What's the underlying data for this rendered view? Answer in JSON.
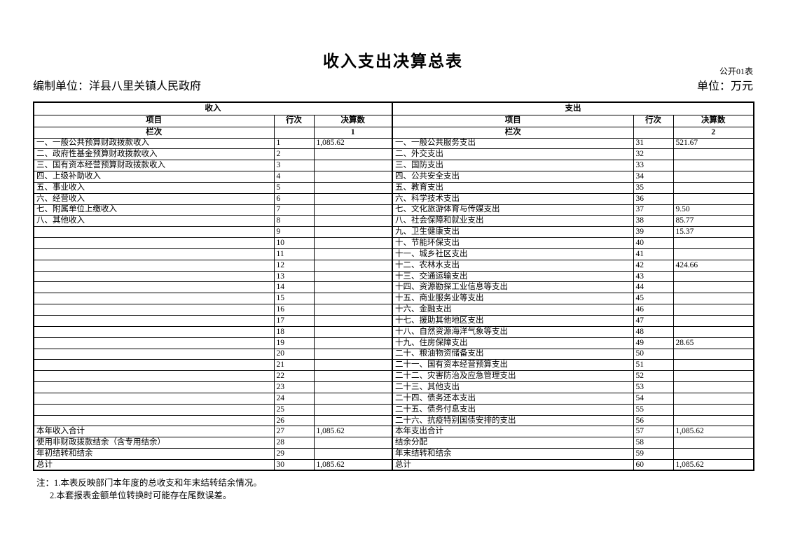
{
  "page": {
    "title": "收入支出决算总表",
    "form_code": "公开01表",
    "prepared_by": "编制单位：洋县八里关镇人民政府",
    "unit": "单位：万元"
  },
  "table": {
    "income_header": "收入",
    "expense_header": "支出",
    "col_item": "项目",
    "col_line": "行次",
    "col_amount": "决算数",
    "col_index_label": "栏次",
    "income_col_index": "1",
    "expense_col_index": "2",
    "income_rows": [
      {
        "item": "一、一般公共预算财政拨款收入",
        "line": "1",
        "amount": "1,085.62"
      },
      {
        "item": "二、政府性基金预算财政拨款收入",
        "line": "2",
        "amount": ""
      },
      {
        "item": "三、国有资本经营预算财政拨款收入",
        "line": "3",
        "amount": ""
      },
      {
        "item": "四、上级补助收入",
        "line": "4",
        "amount": ""
      },
      {
        "item": "五、事业收入",
        "line": "5",
        "amount": ""
      },
      {
        "item": "六、经营收入",
        "line": "6",
        "amount": ""
      },
      {
        "item": "七、附属单位上缴收入",
        "line": "7",
        "amount": ""
      },
      {
        "item": "八、其他收入",
        "line": "8",
        "amount": ""
      },
      {
        "item": "",
        "line": "9",
        "amount": ""
      },
      {
        "item": "",
        "line": "10",
        "amount": ""
      },
      {
        "item": "",
        "line": "11",
        "amount": ""
      },
      {
        "item": "",
        "line": "12",
        "amount": ""
      },
      {
        "item": "",
        "line": "13",
        "amount": ""
      },
      {
        "item": "",
        "line": "14",
        "amount": ""
      },
      {
        "item": "",
        "line": "15",
        "amount": ""
      },
      {
        "item": "",
        "line": "16",
        "amount": ""
      },
      {
        "item": "",
        "line": "17",
        "amount": ""
      },
      {
        "item": "",
        "line": "18",
        "amount": ""
      },
      {
        "item": "",
        "line": "19",
        "amount": ""
      },
      {
        "item": "",
        "line": "20",
        "amount": ""
      },
      {
        "item": "",
        "line": "21",
        "amount": ""
      },
      {
        "item": "",
        "line": "22",
        "amount": ""
      },
      {
        "item": "",
        "line": "23",
        "amount": ""
      },
      {
        "item": "",
        "line": "24",
        "amount": ""
      },
      {
        "item": "",
        "line": "25",
        "amount": ""
      },
      {
        "item": "",
        "line": "26",
        "amount": ""
      },
      {
        "item": "本年收入合计",
        "line": "27",
        "amount": "1,085.62"
      },
      {
        "item": "使用非财政拨款结余（含专用结余）",
        "line": "28",
        "amount": ""
      },
      {
        "item": "年初结转和结余",
        "line": "29",
        "amount": ""
      },
      {
        "item": "总计",
        "line": "30",
        "amount": "1,085.62"
      }
    ],
    "expense_rows": [
      {
        "item": "一、一般公共服务支出",
        "line": "31",
        "amount": "521.67"
      },
      {
        "item": "二、外交支出",
        "line": "32",
        "amount": ""
      },
      {
        "item": "三、国防支出",
        "line": "33",
        "amount": ""
      },
      {
        "item": "四、公共安全支出",
        "line": "34",
        "amount": ""
      },
      {
        "item": "五、教育支出",
        "line": "35",
        "amount": ""
      },
      {
        "item": "六、科学技术支出",
        "line": "36",
        "amount": ""
      },
      {
        "item": "七、文化旅游体育与传媒支出",
        "line": "37",
        "amount": "9.50"
      },
      {
        "item": "八、社会保障和就业支出",
        "line": "38",
        "amount": "85.77"
      },
      {
        "item": "九、卫生健康支出",
        "line": "39",
        "amount": "15.37"
      },
      {
        "item": "十、节能环保支出",
        "line": "40",
        "amount": ""
      },
      {
        "item": "十一、城乡社区支出",
        "line": "41",
        "amount": ""
      },
      {
        "item": "十二、农林水支出",
        "line": "42",
        "amount": "424.66"
      },
      {
        "item": "十三、交通运输支出",
        "line": "43",
        "amount": ""
      },
      {
        "item": "十四、资源勘探工业信息等支出",
        "line": "44",
        "amount": ""
      },
      {
        "item": "十五、商业服务业等支出",
        "line": "45",
        "amount": ""
      },
      {
        "item": "十六、金融支出",
        "line": "46",
        "amount": ""
      },
      {
        "item": "十七、援助其他地区支出",
        "line": "47",
        "amount": ""
      },
      {
        "item": "十八、自然资源海洋气象等支出",
        "line": "48",
        "amount": ""
      },
      {
        "item": "十九、住房保障支出",
        "line": "49",
        "amount": "28.65"
      },
      {
        "item": "二十、粮油物资储备支出",
        "line": "50",
        "amount": ""
      },
      {
        "item": "二十一、国有资本经营预算支出",
        "line": "51",
        "amount": ""
      },
      {
        "item": "二十二、灾害防治及应急管理支出",
        "line": "52",
        "amount": ""
      },
      {
        "item": "二十三、其他支出",
        "line": "53",
        "amount": ""
      },
      {
        "item": "二十四、债务还本支出",
        "line": "54",
        "amount": ""
      },
      {
        "item": "二十五、债务付息支出",
        "line": "55",
        "amount": ""
      },
      {
        "item": "二十六、抗疫特别国债安排的支出",
        "line": "56",
        "amount": ""
      },
      {
        "item": "本年支出合计",
        "line": "57",
        "amount": "1,085.62"
      },
      {
        "item": "结余分配",
        "line": "58",
        "amount": ""
      },
      {
        "item": "年末结转和结余",
        "line": "59",
        "amount": ""
      },
      {
        "item": "总计",
        "line": "60",
        "amount": "1,085.62"
      }
    ]
  },
  "notes": [
    "注：1.本表反映部门本年度的总收支和年末结转结余情况。",
    "2.本套报表金额单位转换时可能存在尾数误差。"
  ]
}
